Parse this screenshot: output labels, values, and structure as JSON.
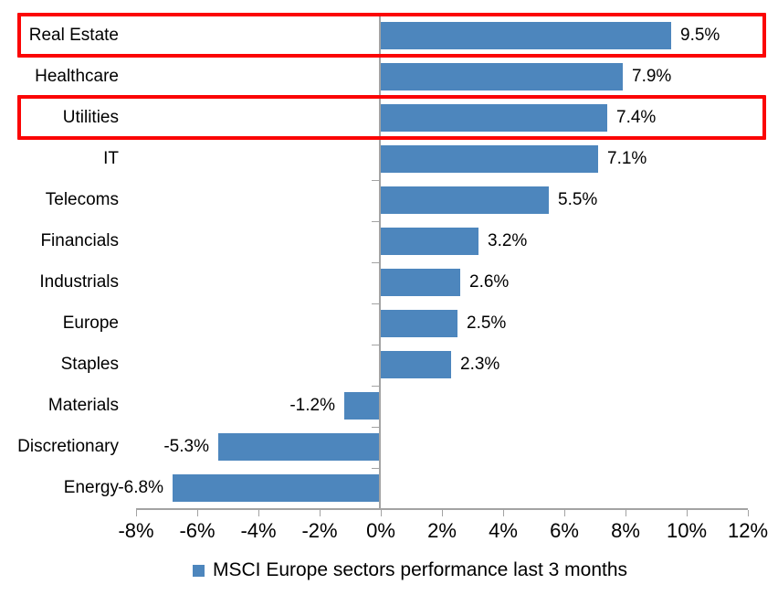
{
  "chart_data": {
    "type": "bar",
    "orientation": "horizontal",
    "title": "",
    "categories": [
      "Real Estate",
      "Healthcare",
      "Utilities",
      "IT",
      "Telecoms",
      "Financials",
      "Industrials",
      "Europe",
      "Staples",
      "Materials",
      "Discretionary",
      "Energy"
    ],
    "values": [
      9.5,
      7.9,
      7.4,
      7.1,
      5.5,
      3.2,
      2.6,
      2.5,
      2.3,
      -1.2,
      -5.3,
      -6.8
    ],
    "value_labels": [
      "9.5%",
      "7.9%",
      "7.4%",
      "7.1%",
      "5.5%",
      "3.2%",
      "2.6%",
      "2.5%",
      "2.3%",
      "-1.2%",
      "-5.3%",
      "-6.8%"
    ],
    "xlim": [
      -8,
      12
    ],
    "x_ticks": [
      {
        "value": -8,
        "label": "-8%"
      },
      {
        "value": -6,
        "label": "-6%"
      },
      {
        "value": -4,
        "label": "-4%"
      },
      {
        "value": -2,
        "label": "-2%"
      },
      {
        "value": 0,
        "label": "0%"
      },
      {
        "value": 2,
        "label": "2%"
      },
      {
        "value": 4,
        "label": "4%"
      },
      {
        "value": 6,
        "label": "6%"
      },
      {
        "value": 8,
        "label": "8%"
      },
      {
        "value": 10,
        "label": "10%"
      },
      {
        "value": 12,
        "label": "12%"
      }
    ],
    "grid": false,
    "legend_position": "bottom",
    "highlighted_categories": [
      "Real Estate",
      "Utilities"
    ]
  },
  "legend": {
    "label": "MSCI Europe sectors performance last 3 months"
  },
  "colors": {
    "bar": "#4d86bd",
    "axis": "#a3a3a3",
    "highlight": "#fb0505",
    "text": "#000000"
  }
}
